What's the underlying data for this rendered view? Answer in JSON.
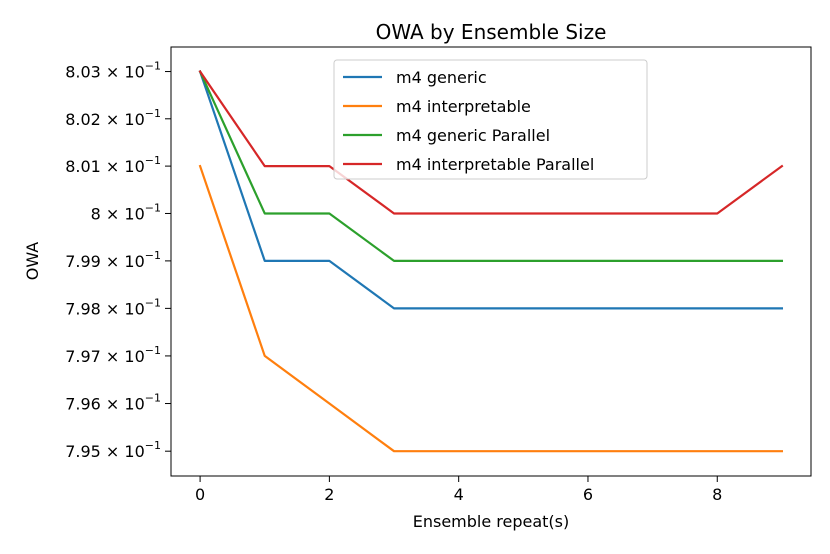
{
  "chart_data": {
    "type": "line",
    "title": "OWA by Ensemble Size",
    "xlabel": "Ensemble repeat(s)",
    "ylabel": "OWA",
    "x": [
      0,
      1,
      2,
      3,
      4,
      5,
      6,
      7,
      8,
      9
    ],
    "xlim": [
      -0.45,
      9.45
    ],
    "ylim": [
      0.79448,
      0.80352
    ],
    "y_scale": "log",
    "grid": false,
    "legend_position": "top-center",
    "x_ticks": [
      {
        "value": 0,
        "label": "0"
      },
      {
        "value": 2,
        "label": "2"
      },
      {
        "value": 4,
        "label": "4"
      },
      {
        "value": 6,
        "label": "6"
      },
      {
        "value": 8,
        "label": "8"
      }
    ],
    "y_ticks": [
      {
        "value": 0.803,
        "mantissa": "8.03",
        "base": "10",
        "exponent": "−1"
      },
      {
        "value": 0.802,
        "mantissa": "8.02",
        "base": "10",
        "exponent": "−1"
      },
      {
        "value": 0.801,
        "mantissa": "8.01",
        "base": "10",
        "exponent": "−1"
      },
      {
        "value": 0.8,
        "mantissa": "8",
        "base": "10",
        "exponent": "−1"
      },
      {
        "value": 0.799,
        "mantissa": "7.99",
        "base": "10",
        "exponent": "−1"
      },
      {
        "value": 0.798,
        "mantissa": "7.98",
        "base": "10",
        "exponent": "−1"
      },
      {
        "value": 0.797,
        "mantissa": "7.97",
        "base": "10",
        "exponent": "−1"
      },
      {
        "value": 0.796,
        "mantissa": "7.96",
        "base": "10",
        "exponent": "−1"
      },
      {
        "value": 0.795,
        "mantissa": "7.95",
        "base": "10",
        "exponent": "−1"
      }
    ],
    "series": [
      {
        "name": "m4 generic",
        "color": "#1f77b4",
        "values": [
          0.803,
          0.799,
          0.799,
          0.798,
          0.798,
          0.798,
          0.798,
          0.798,
          0.798,
          0.798
        ]
      },
      {
        "name": "m4 interpretable",
        "color": "#ff7f0e",
        "values": [
          0.801,
          0.797,
          0.796,
          0.795,
          0.795,
          0.795,
          0.795,
          0.795,
          0.795,
          0.795
        ]
      },
      {
        "name": "m4 generic Parallel",
        "color": "#2ca02c",
        "values": [
          0.803,
          0.8,
          0.8,
          0.799,
          0.799,
          0.799,
          0.799,
          0.799,
          0.799,
          0.799
        ]
      },
      {
        "name": "m4 interpretable Parallel",
        "color": "#d62728",
        "values": [
          0.803,
          0.801,
          0.801,
          0.8,
          0.8,
          0.8,
          0.8,
          0.8,
          0.8,
          0.801
        ]
      }
    ]
  }
}
